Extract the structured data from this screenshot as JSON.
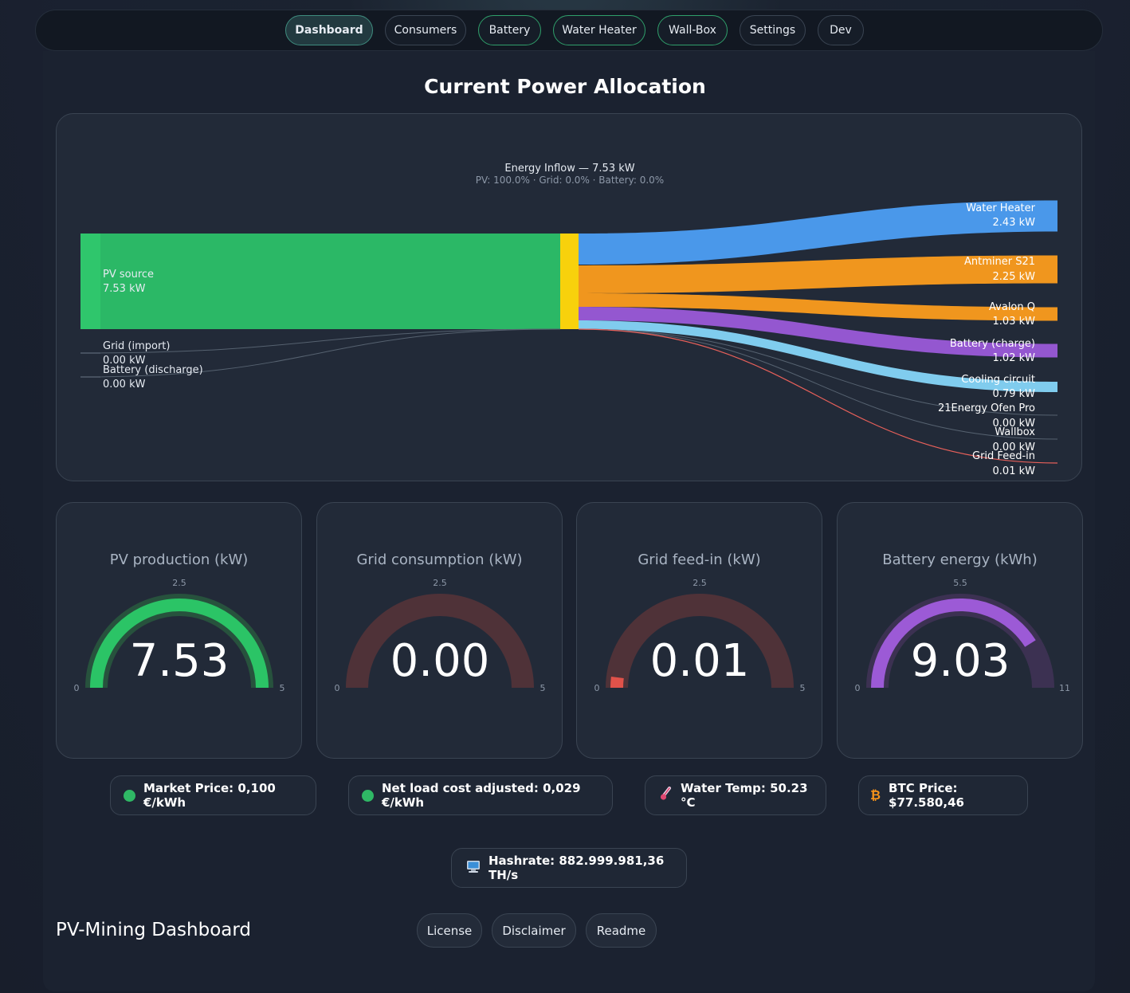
{
  "nav": {
    "items": [
      {
        "label": "Dashboard"
      },
      {
        "label": "Consumers"
      },
      {
        "label": "Battery"
      },
      {
        "label": "Water Heater"
      },
      {
        "label": "Wall-Box"
      },
      {
        "label": "Settings"
      },
      {
        "label": "Dev"
      }
    ]
  },
  "main": {
    "title": "Current Power Allocation"
  },
  "sankey": {
    "title": "Energy Inflow — 7.53 kW",
    "subtitle": "PV: 100.0% · Grid: 0.0% · Battery: 0.0%",
    "sources": [
      {
        "name": "PV source",
        "value": "7.53 kW",
        "kw": 7.53,
        "color": "#2bb866"
      },
      {
        "name": "Grid (import)",
        "value": "0.00 kW",
        "kw": 0.0
      },
      {
        "name": "Battery (discharge)",
        "value": "0.00 kW",
        "kw": 0.0
      }
    ],
    "targets": [
      {
        "name": "Water Heater",
        "value": "2.43 kW",
        "kw": 2.43,
        "color": "#4a98ea"
      },
      {
        "name": "Antminer S21",
        "value": "2.25 kW",
        "kw": 2.25,
        "color": "#f0961e"
      },
      {
        "name": "Avalon Q",
        "value": "1.03 kW",
        "kw": 1.03,
        "color": "#f0961e"
      },
      {
        "name": "Battery (charge)",
        "value": "1.02 kW",
        "kw": 1.02,
        "color": "#9457d0"
      },
      {
        "name": "Cooling circuit",
        "value": "0.79 kW",
        "kw": 0.79,
        "color": "#80ccee"
      },
      {
        "name": "21Energy Ofen Pro",
        "value": "0.00 kW",
        "kw": 0.0,
        "color": "#566270"
      },
      {
        "name": "Wallbox",
        "value": "0.00 kW",
        "kw": 0.0,
        "color": "#566270"
      },
      {
        "name": "Grid Feed-in",
        "value": "0.01 kW",
        "kw": 0.01,
        "color": "#e8605a"
      }
    ]
  },
  "gauges": [
    {
      "title": "PV production (kW)",
      "value": "7.53",
      "num": 7.53,
      "min": "0",
      "max": "5",
      "mid": "2.5",
      "min_n": 0,
      "max_n": 5,
      "color": "#2bc466",
      "track": "#27523d"
    },
    {
      "title": "Grid consumption (kW)",
      "value": "0.00",
      "num": 0.0,
      "min": "0",
      "max": "5",
      "mid": "2.5",
      "min_n": 0,
      "max_n": 5,
      "color": "#e0524a",
      "track": "#4f3238"
    },
    {
      "title": "Grid feed-in (kW)",
      "value": "0.01",
      "num": 0.01,
      "min": "0",
      "max": "5",
      "mid": "2.5",
      "min_n": 0,
      "max_n": 5,
      "color": "#e0524a",
      "track": "#4f3238"
    },
    {
      "title": "Battery energy (kWh)",
      "value": "9.03",
      "num": 9.03,
      "min": "0",
      "max": "11",
      "mid": "5.5",
      "min_n": 0,
      "max_n": 11,
      "color": "#9c5ad6",
      "track": "#3c3152"
    }
  ],
  "stats": {
    "market_price": "Market Price: 0,100 €/kWh",
    "net_load_cost": "Net load cost adjusted: 0,029 €/kWh",
    "water_temp": "Water Temp: 50.23 °C",
    "btc_price": "BTC Price: $77.580,46",
    "hashrate": "Hashrate: 882.999.981,36 TH/s"
  },
  "footer": {
    "title": "PV-Mining Dashboard",
    "links": [
      {
        "label": "License"
      },
      {
        "label": "Disclaimer"
      },
      {
        "label": "Readme"
      }
    ]
  },
  "colors": {
    "status_green": "#2fb865",
    "btc_orange": "#f7931a"
  },
  "icons": {
    "temp": "thermometer-icon",
    "btc": "bitcoin-icon",
    "hashrate": "computer-icon"
  }
}
